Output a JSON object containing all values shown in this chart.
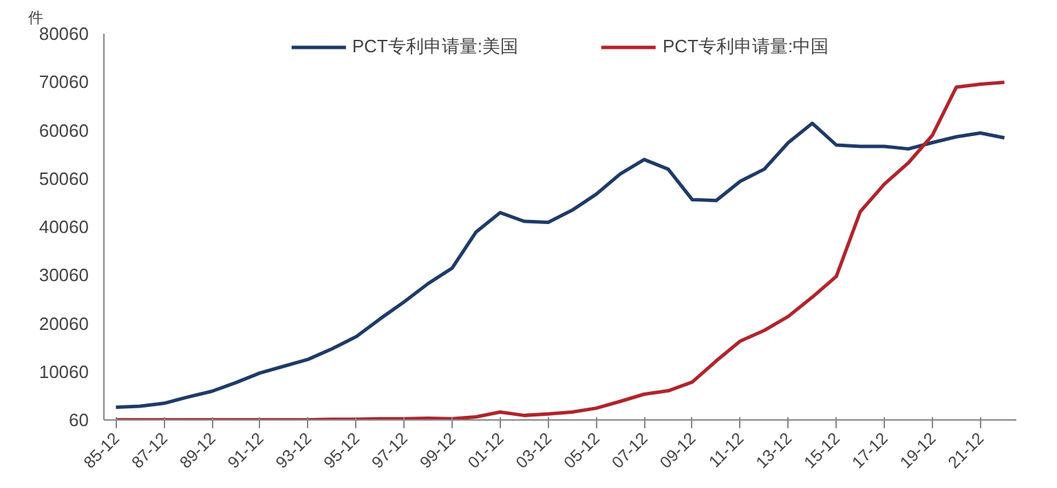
{
  "chart_data": {
    "type": "line",
    "ylabel": "件",
    "categories": [
      "85-12",
      null,
      "87-12",
      null,
      "89-12",
      null,
      "91-12",
      null,
      "93-12",
      null,
      "95-12",
      null,
      "97-12",
      null,
      "99-12",
      null,
      "01-12",
      null,
      "03-12",
      null,
      "05-12",
      null,
      "07-12",
      null,
      "09-12",
      null,
      "11-12",
      null,
      "13-12",
      null,
      "15-12",
      null,
      "17-12",
      null,
      "19-12",
      null,
      "21-12",
      null
    ],
    "series": [
      {
        "name": "PCT专利申请量:美国",
        "color": "#1f3a68",
        "values": [
          2700,
          2900,
          3500,
          4800,
          6000,
          7800,
          9800,
          11200,
          12600,
          14800,
          17300,
          21000,
          24500,
          28300,
          31500,
          39000,
          43000,
          41200,
          41000,
          43500,
          46800,
          51000,
          54000,
          52000,
          45700,
          45500,
          49500,
          52000,
          57500,
          61500,
          57000,
          56700,
          56700,
          56200,
          57500,
          58700,
          59500,
          58500
        ]
      },
      {
        "name": "PCT专利申请量:中国",
        "color": "#b0242c",
        "values": [
          100,
          100,
          100,
          100,
          100,
          100,
          100,
          100,
          100,
          200,
          200,
          300,
          300,
          400,
          300,
          700,
          1700,
          1000,
          1300,
          1700,
          2500,
          3900,
          5400,
          6100,
          7900,
          12300,
          16400,
          18600,
          21500,
          25500,
          29800,
          43200,
          48900,
          53300,
          59000,
          69000,
          69600,
          70000
        ]
      }
    ],
    "ylim": [
      60,
      80060
    ],
    "yticks": [
      60,
      10060,
      20060,
      30060,
      40060,
      50060,
      60060,
      70060,
      80060
    ],
    "grid": false,
    "legend": "top",
    "line_style": "solid",
    "marker": "none"
  }
}
